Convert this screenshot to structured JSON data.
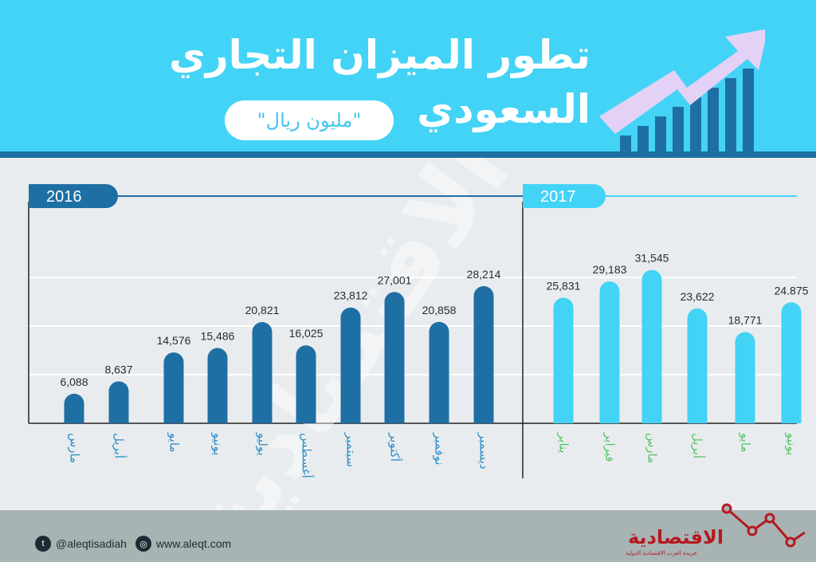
{
  "header": {
    "title_line1": "تطور الميزان التجاري",
    "title_line2": "السعودي",
    "subtitle": "\"مليون ريال\""
  },
  "colors": {
    "header_bg": "#43d3f6",
    "bar_2016": "#1e6fa4",
    "bar_2017": "#43d3f6",
    "month_label_2016": "#2f8fc6",
    "month_label_2017": "#57c46a"
  },
  "chart_data": {
    "type": "bar",
    "unit": "مليون ريال",
    "ylim": [
      0,
      40000
    ],
    "grid": true,
    "series": [
      {
        "name": "2016",
        "categories": [
          "مارس",
          "أبريل",
          "مايو",
          "يونيو",
          "يوليو",
          "أغسطس",
          "سبتمبر",
          "أكتوبر",
          "نوفمبر",
          "ديسمبر"
        ],
        "values": [
          6088,
          8637,
          14576,
          15486,
          20821,
          16025,
          23812,
          27001,
          20858,
          28214
        ],
        "value_labels": [
          "6,088",
          "8,637",
          "14,576",
          "15,486",
          "20,821",
          "16,025",
          "23,812",
          "27,001",
          "20,858",
          "28,214"
        ]
      },
      {
        "name": "2017",
        "categories": [
          "يناير",
          "فبراير",
          "مارس",
          "أبريل",
          "مايو",
          "يونيو"
        ],
        "values": [
          25831,
          29183,
          31545,
          23622,
          18771,
          24875
        ],
        "value_labels": [
          "25,831",
          "29,183",
          "31,545",
          "23,622",
          "18,771",
          "24.875"
        ]
      }
    ]
  },
  "footer": {
    "twitter": "@aleqtisadiah",
    "website": "www.aleqt.com",
    "logo": "الاقتصادية",
    "logo_sub": "جريدة العرب الاقتصادية الدولية"
  },
  "icons": [
    "twitter-icon",
    "web-icon",
    "trend-arrow-icon"
  ]
}
